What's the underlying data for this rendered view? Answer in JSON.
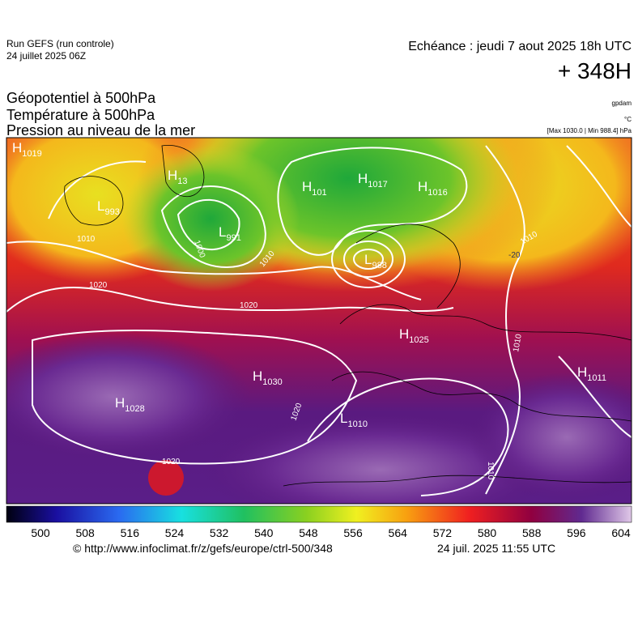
{
  "header": {
    "run": "Run GEFS (run controle)",
    "date": "24 juillet 2025 06Z",
    "echeance": "Echéance : jeudi 7 aout 2025 18h UTC",
    "lead": "+ 348H"
  },
  "titles": [
    "Géopotentiel à 500hPa",
    "Température à 500hPa",
    "Pression au niveau de la mer"
  ],
  "units": [
    "gpdam",
    "°C",
    "[Max 1030.0 | Min 988.4] hPa"
  ],
  "centers": [
    {
      "letter": "H",
      "value": "1019"
    },
    {
      "letter": "L",
      "value": "993"
    },
    {
      "letter": "H",
      "value": "13"
    },
    {
      "letter": "L",
      "value": "991"
    },
    {
      "letter": "H",
      "value": "101"
    },
    {
      "letter": "H",
      "value": "1017"
    },
    {
      "letter": "H",
      "value": "1016"
    },
    {
      "letter": "L",
      "value": "988"
    },
    {
      "letter": "H",
      "value": "1025"
    },
    {
      "letter": "H",
      "value": "1030"
    },
    {
      "letter": "H",
      "value": "1028"
    },
    {
      "letter": "L",
      "value": "1010"
    },
    {
      "letter": "H",
      "value": "1011"
    }
  ],
  "isobar_labels": [
    "1010",
    "1020",
    "1020",
    "1000",
    "1010",
    "1020",
    "1020",
    "1010",
    "1010",
    "1010",
    "-20"
  ],
  "colorbar_labels": [
    500,
    508,
    516,
    524,
    532,
    540,
    548,
    556,
    564,
    572,
    580,
    588,
    596,
    604
  ],
  "footer": {
    "url": "© http://www.infoclimat.fr/z/gefs/europe/ctrl-500/348",
    "time": "24 juil. 2025 11:55 UTC"
  }
}
